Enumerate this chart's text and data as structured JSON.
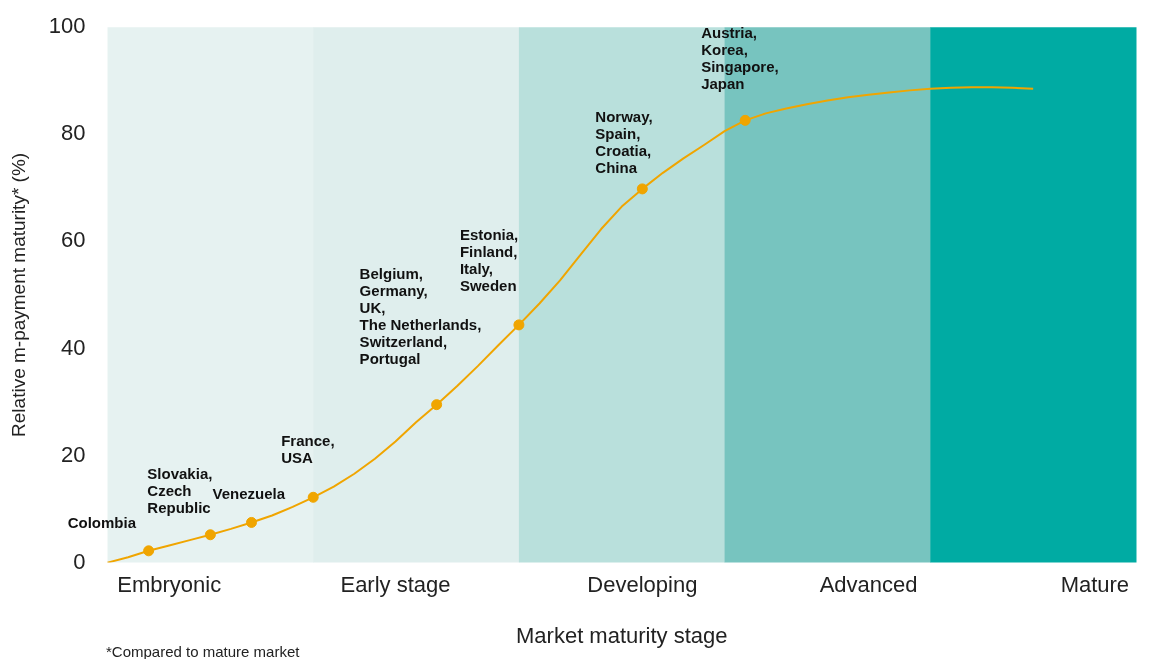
{
  "chart_data": {
    "type": "line",
    "ylabel": "Relative m-payment maturity* (%)",
    "xlabel": "Market maturity stage",
    "ylim": [
      0,
      100
    ],
    "yticks": [
      0,
      20,
      40,
      60,
      80,
      100
    ],
    "grid": false,
    "legend": false,
    "marker": "circle",
    "categories": [
      null,
      null,
      null,
      "Embryonic",
      null,
      null,
      null,
      null,
      null,
      null,
      null,
      null,
      null,
      null,
      "Early stage",
      null,
      null,
      null,
      null,
      null,
      null,
      null,
      null,
      null,
      null,
      null,
      "Developing",
      null,
      null,
      null,
      null,
      null,
      null,
      null,
      null,
      null,
      null,
      "Advanced",
      null,
      null,
      null,
      null,
      null,
      null,
      null,
      null,
      null,
      null,
      "Mature",
      null,
      null
    ],
    "series": [
      {
        "type": "line",
        "color": "#f0a500",
        "marker": "none",
        "values": [
          0,
          1.0,
          2.2,
          3.2,
          4.2,
          5.2,
          6.3,
          7.5,
          8.8,
          10.4,
          12.2,
          14.2,
          16.6,
          19.4,
          22.6,
          26.2,
          29.5,
          33.0,
          36.7,
          40.6,
          44.4,
          48.4,
          52.7,
          57.5,
          62.3,
          66.5,
          69.8,
          72.8,
          75.5,
          78.0,
          80.6,
          82.6,
          83.9,
          84.8,
          85.6,
          86.3,
          86.9,
          87.4,
          87.8,
          88.2,
          88.5,
          88.7,
          88.8,
          88.8,
          88.7,
          88.5,
          null,
          null,
          null,
          null,
          null
        ]
      },
      {
        "type": "scatter",
        "color": "#f0a500",
        "values": [
          null,
          null,
          2.2,
          null,
          null,
          5.2,
          null,
          7.5,
          null,
          null,
          12.2,
          null,
          null,
          null,
          null,
          null,
          29.5,
          null,
          null,
          null,
          44.4,
          null,
          null,
          null,
          null,
          null,
          69.8,
          null,
          null,
          null,
          null,
          82.6,
          null,
          null,
          null,
          null,
          null,
          null,
          null,
          null,
          null,
          null,
          null,
          null,
          null,
          null,
          null,
          null,
          null,
          null,
          null
        ]
      }
    ],
    "annotations": [
      "Colombia",
      "Slovakia,\nCzech\nRepublic",
      "Venezuela",
      "France,\nUSA",
      "Belgium,\nGermany,\nUK,\nThe Netherlands,\nSwitzerland,\nPortugal",
      "Estonia,\nFinland,\nItaly,\nSweden",
      "Norway,\nSpain,\nCroatia,\nChina",
      "Austria,\nKorea,\nSingapore,\nJapan",
      "*Compared to mature market"
    ]
  }
}
